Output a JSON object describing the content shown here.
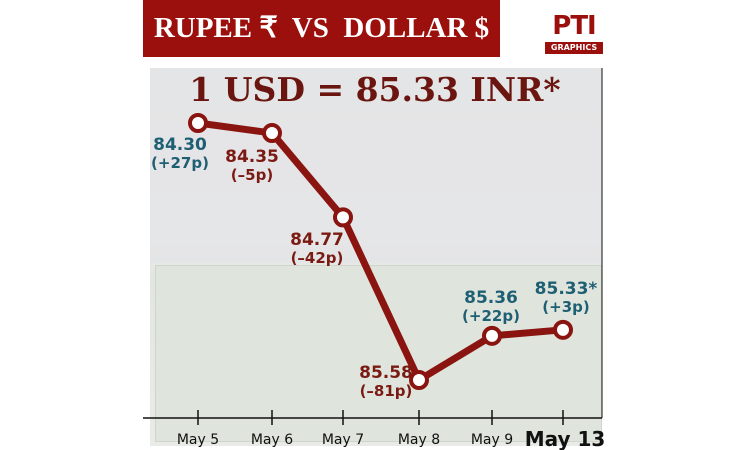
{
  "title": "RUPEE ₹  VS  DOLLAR $",
  "logo": {
    "text": "PTI",
    "sub": "GRAPHICS"
  },
  "headline": "1 USD = 85.33 INR*",
  "colors": {
    "brand": "#9b0f0c",
    "line": "#8a1410",
    "up_label": "#1f5f73",
    "down_label": "#7a1a12"
  },
  "chart_data": {
    "type": "line",
    "categories": [
      "May 5",
      "May 6",
      "May 7",
      "May 8",
      "May 9",
      "May 13"
    ],
    "series": [
      {
        "values": [
          84.3,
          84.35,
          84.77,
          85.58,
          85.36,
          85.33
        ]
      }
    ],
    "data_labels": [
      "84.30",
      "84.35",
      "84.77",
      "85.58",
      "85.36",
      "85.33*"
    ],
    "change_labels": [
      "(+27p)",
      "(–5p)",
      "(–42p)",
      "(–81p)",
      "(+22p)",
      "(+3p)"
    ],
    "y_inverted": true,
    "grid": false
  }
}
